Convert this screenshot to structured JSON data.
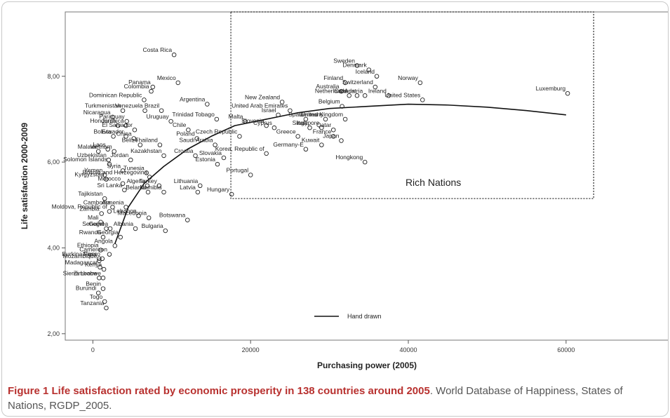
{
  "chart_data": {
    "type": "scatter",
    "xlabel": "Purchasing power (2005)",
    "ylabel": "Life satisfaction 2000-2009",
    "xlim": [
      -3500,
      73000
    ],
    "ylim": [
      1.85,
      9.5
    ],
    "x_ticks": [
      0,
      20000,
      40000,
      60000
    ],
    "x_tick_labels": [
      "0",
      "20000",
      "40000",
      "60000"
    ],
    "y_ticks": [
      2,
      4,
      6,
      8
    ],
    "y_tick_labels": [
      "2,00",
      "4,00",
      "6,00",
      "8,00"
    ],
    "grid": false,
    "annotation_box": {
      "label": "Rich Nations",
      "x": [
        17500,
        63500
      ],
      "y": [
        5.15,
        9.5
      ]
    },
    "curve": {
      "name": "Hand drawn",
      "points": [
        [
          2800,
          4.1
        ],
        [
          4500,
          4.95
        ],
        [
          6500,
          5.5
        ],
        [
          9000,
          5.9
        ],
        [
          12000,
          6.3
        ],
        [
          15000,
          6.6
        ],
        [
          18000,
          6.85
        ],
        [
          22000,
          7.0
        ],
        [
          26000,
          7.15
        ],
        [
          30000,
          7.25
        ],
        [
          35000,
          7.3
        ],
        [
          40000,
          7.35
        ],
        [
          45000,
          7.33
        ],
        [
          50000,
          7.28
        ],
        [
          55000,
          7.2
        ],
        [
          60000,
          7.1
        ]
      ]
    },
    "legend": {
      "label": "Hand drawn",
      "position": "bottom-center"
    },
    "points": [
      {
        "label": "Costa Rica",
        "x": 10300,
        "y": 8.5
      },
      {
        "label": "Mexico",
        "x": 10800,
        "y": 7.85
      },
      {
        "label": "Panama",
        "x": 7600,
        "y": 7.75
      },
      {
        "label": "Colombia",
        "x": 7400,
        "y": 7.65
      },
      {
        "label": "Dominican Republic",
        "x": 6500,
        "y": 7.45
      },
      {
        "label": "Argentina",
        "x": 14500,
        "y": 7.35
      },
      {
        "label": "Turkmenistan",
        "x": 3800,
        "y": 7.2
      },
      {
        "label": "Venezuela",
        "x": 6600,
        "y": 7.2
      },
      {
        "label": "Brazil",
        "x": 8700,
        "y": 7.2
      },
      {
        "label": "Nicaragua",
        "x": 2500,
        "y": 7.05
      },
      {
        "label": "Paraguay",
        "x": 4300,
        "y": 6.95
      },
      {
        "label": "Uruguay",
        "x": 9900,
        "y": 6.95
      },
      {
        "label": "Trinidad Tobago",
        "x": 15700,
        "y": 7.0
      },
      {
        "label": "Honduras",
        "x": 3200,
        "y": 6.85
      },
      {
        "label": "Jamaica",
        "x": 4200,
        "y": 6.85
      },
      {
        "label": "El Salvador",
        "x": 5300,
        "y": 6.75
      },
      {
        "label": "Chile",
        "x": 12100,
        "y": 6.75
      },
      {
        "label": "Malta",
        "x": 19300,
        "y": 6.95
      },
      {
        "label": "Bolivia",
        "x": 2600,
        "y": 6.6
      },
      {
        "label": "Ecuador",
        "x": 4200,
        "y": 6.6
      },
      {
        "label": "China",
        "x": 5200,
        "y": 6.55
      },
      {
        "label": "Poland",
        "x": 13200,
        "y": 6.55
      },
      {
        "label": "Czech Republic",
        "x": 18600,
        "y": 6.6
      },
      {
        "label": "Belize",
        "x": 6000,
        "y": 6.4
      },
      {
        "label": "Thailand",
        "x": 8500,
        "y": 6.4
      },
      {
        "label": "Saudi Arabia",
        "x": 15500,
        "y": 6.4
      },
      {
        "label": "Malawi",
        "x": 700,
        "y": 6.25
      },
      {
        "label": "Laos",
        "x": 1900,
        "y": 6.3
      },
      {
        "label": "Vietnam",
        "x": 2700,
        "y": 6.25
      },
      {
        "label": "Kazakhstan",
        "x": 9000,
        "y": 6.15
      },
      {
        "label": "Croatia",
        "x": 13000,
        "y": 6.15
      },
      {
        "label": "Slovakia",
        "x": 16600,
        "y": 6.1
      },
      {
        "label": "Uzbekistan",
        "x": 2000,
        "y": 6.05
      },
      {
        "label": "Jordan",
        "x": 4800,
        "y": 6.05
      },
      {
        "label": "Estonia",
        "x": 15800,
        "y": 5.95
      },
      {
        "label": "Solomon Islands",
        "x": 2100,
        "y": 5.95
      },
      {
        "label": "Syria",
        "x": 3800,
        "y": 5.8
      },
      {
        "label": "Tunesia",
        "x": 6800,
        "y": 5.75
      },
      {
        "label": "Bosnia and Herzegovina",
        "x": 7200,
        "y": 5.65
      },
      {
        "label": "Yemen",
        "x": 1500,
        "y": 5.7
      },
      {
        "label": "Kyrgyzstan",
        "x": 1700,
        "y": 5.6
      },
      {
        "label": "Morocco",
        "x": 3800,
        "y": 5.5
      },
      {
        "label": "Algeria",
        "x": 6900,
        "y": 5.45
      },
      {
        "label": "Turkey",
        "x": 8400,
        "y": 5.45
      },
      {
        "label": "Lithuania",
        "x": 13600,
        "y": 5.45
      },
      {
        "label": "Sri Lanka",
        "x": 4000,
        "y": 5.35
      },
      {
        "label": "Belarus",
        "x": 7000,
        "y": 5.3
      },
      {
        "label": "Namibia",
        "x": 9000,
        "y": 5.3
      },
      {
        "label": "Latvia",
        "x": 13300,
        "y": 5.3
      },
      {
        "label": "Tajikistan",
        "x": 1500,
        "y": 5.15
      },
      {
        "label": "Cambodia",
        "x": 2500,
        "y": 4.95
      },
      {
        "label": "Armenia",
        "x": 4200,
        "y": 4.95
      },
      {
        "label": "Moldova, Republic of",
        "x": 2100,
        "y": 4.85
      },
      {
        "label": "Zambia",
        "x": 1100,
        "y": 4.8
      },
      {
        "label": "Lebanon",
        "x": 5800,
        "y": 4.75
      },
      {
        "label": "Macedonia",
        "x": 7100,
        "y": 4.7
      },
      {
        "label": "Mali",
        "x": 1000,
        "y": 4.6
      },
      {
        "label": "Botswana",
        "x": 12000,
        "y": 4.65
      },
      {
        "label": "Albania",
        "x": 5400,
        "y": 4.45
      },
      {
        "label": "Senegal",
        "x": 1700,
        "y": 4.45
      },
      {
        "label": "Guinea",
        "x": 2200,
        "y": 4.45
      },
      {
        "label": "Bulgaria",
        "x": 9200,
        "y": 4.4
      },
      {
        "label": "Rwanda",
        "x": 1300,
        "y": 4.25
      },
      {
        "label": "Georgia",
        "x": 3500,
        "y": 4.25
      },
      {
        "label": "Angola",
        "x": 2800,
        "y": 4.05
      },
      {
        "label": "Ethiopia",
        "x": 1000,
        "y": 3.95
      },
      {
        "label": "Cameroon",
        "x": 2100,
        "y": 3.85
      },
      {
        "label": "Niger",
        "x": 800,
        "y": 3.75
      },
      {
        "label": "Burkina Fasso",
        "x": 1200,
        "y": 3.75
      },
      {
        "label": "Mozambique",
        "x": 800,
        "y": 3.7
      },
      {
        "label": "Madagascar",
        "x": 900,
        "y": 3.55
      },
      {
        "label": "Kenya",
        "x": 1400,
        "y": 3.5
      },
      {
        "label": "Sierra Leone",
        "x": 800,
        "y": 3.3
      },
      {
        "label": "Zimbabwe",
        "x": 1300,
        "y": 3.3
      },
      {
        "label": "Benin",
        "x": 1300,
        "y": 3.05
      },
      {
        "label": "Burundi",
        "x": 700,
        "y": 2.95
      },
      {
        "label": "Togo",
        "x": 1500,
        "y": 2.75
      },
      {
        "label": "Tanzania",
        "x": 1700,
        "y": 2.6
      },
      {
        "label": "Luxemburg",
        "x": 60200,
        "y": 7.6
      },
      {
        "label": "Norway",
        "x": 41500,
        "y": 7.85
      },
      {
        "label": "Ireland",
        "x": 37500,
        "y": 7.55
      },
      {
        "label": "United States",
        "x": 41800,
        "y": 7.45
      },
      {
        "label": "Denmark",
        "x": 35000,
        "y": 8.15
      },
      {
        "label": "Iceland",
        "x": 36000,
        "y": 8.0
      },
      {
        "label": "Sweden",
        "x": 33500,
        "y": 8.25
      },
      {
        "label": "Switzerland",
        "x": 35800,
        "y": 7.75
      },
      {
        "label": "Finland",
        "x": 32000,
        "y": 7.85
      },
      {
        "label": "Australia",
        "x": 31500,
        "y": 7.65
      },
      {
        "label": "Netherlands",
        "x": 32500,
        "y": 7.55
      },
      {
        "label": "Canada",
        "x": 33500,
        "y": 7.55
      },
      {
        "label": "Austria",
        "x": 34500,
        "y": 7.55
      },
      {
        "label": "New Zealand",
        "x": 24000,
        "y": 7.4
      },
      {
        "label": "Belgium",
        "x": 31600,
        "y": 7.3
      },
      {
        "label": "United Arab Emirates",
        "x": 25000,
        "y": 7.2
      },
      {
        "label": "Israel",
        "x": 23500,
        "y": 7.1
      },
      {
        "label": "Germany",
        "x": 29500,
        "y": 7.0
      },
      {
        "label": "United Kingdom",
        "x": 32000,
        "y": 7.0
      },
      {
        "label": "Spain",
        "x": 27000,
        "y": 7.0
      },
      {
        "label": "Slovenia",
        "x": 22000,
        "y": 6.85
      },
      {
        "label": "Cyprus",
        "x": 23000,
        "y": 6.8
      },
      {
        "label": "Italy",
        "x": 27500,
        "y": 6.8
      },
      {
        "label": "Singapore",
        "x": 29000,
        "y": 6.8
      },
      {
        "label": "Qatar",
        "x": 30500,
        "y": 6.75
      },
      {
        "label": "Greece",
        "x": 26000,
        "y": 6.6
      },
      {
        "label": "France",
        "x": 30500,
        "y": 6.6
      },
      {
        "label": "Kuwait",
        "x": 29000,
        "y": 6.4
      },
      {
        "label": "Japan",
        "x": 31500,
        "y": 6.5
      },
      {
        "label": "Korea, Republic of",
        "x": 22000,
        "y": 6.2
      },
      {
        "label": "Germany-E",
        "x": 27000,
        "y": 6.3
      },
      {
        "label": "Hongkong",
        "x": 34500,
        "y": 6.0
      },
      {
        "label": "Portugal",
        "x": 20000,
        "y": 5.7
      },
      {
        "label": "Hungary",
        "x": 17600,
        "y": 5.25
      }
    ]
  },
  "caption": {
    "figure": "Figure 1 Life satisfaction rated by economic prosperity in 138 countries around 2005",
    "rest": ". World Database of Happiness, States of Nations, RGDP_2005."
  }
}
